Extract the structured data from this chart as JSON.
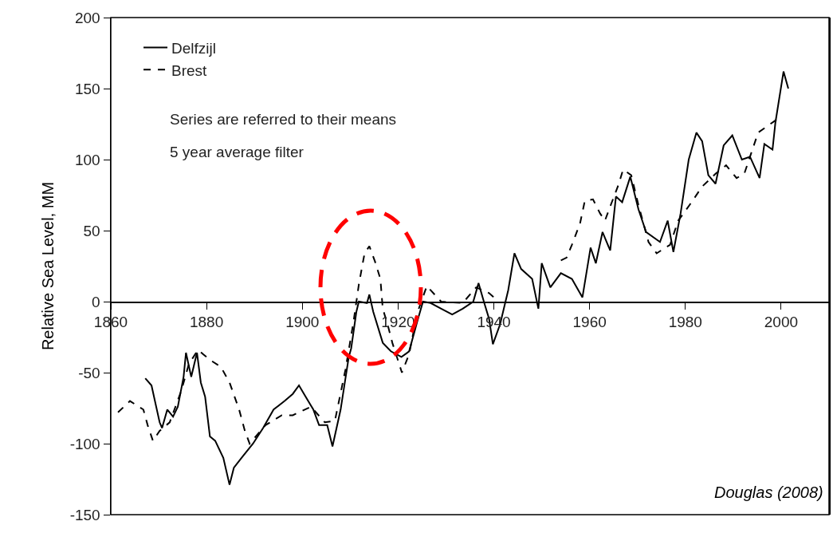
{
  "chart_data": {
    "type": "line",
    "ylabel": "Relative Sea Level, MM",
    "xlim": [
      1860,
      2010
    ],
    "xticks": [
      1860,
      1880,
      1900,
      1920,
      1940,
      1960,
      1980,
      2000
    ],
    "ylim": [
      -150,
      200
    ],
    "yticks": [
      -150,
      -100,
      -50,
      0,
      50,
      100,
      150,
      200
    ],
    "grid": false,
    "legend": "top left",
    "marker": "none",
    "annotations": [
      "Series are referred to their means",
      "5 year average filter",
      "Douglas (2008)"
    ],
    "series": [
      {
        "name": "Delfzijl",
        "color": "#000000",
        "line_style": "solid",
        "x": [
          1867.2,
          1868.5,
          1870.2,
          1870.7,
          1871.8,
          1873,
          1874,
          1875.2,
          1875.7,
          1876.8,
          1878,
          1878.8,
          1879.7,
          1880.7,
          1881.8,
          1883.5,
          1884.8,
          1885.7,
          1887.3,
          1889.7,
          1891.8,
          1894,
          1896.3,
          1898,
          1899.3,
          1900.7,
          1902.3,
          1903.5,
          1905.2,
          1906.3,
          1908,
          1909.7,
          1910.2,
          1911.3,
          1911.8,
          1913.5,
          1914,
          1914.8,
          1916.8,
          1918.5,
          1920.7,
          1922.3,
          1924,
          1925.2,
          1926.8,
          1929,
          1931.3,
          1933.5,
          1935.7,
          1936.8,
          1938,
          1939,
          1939.8,
          1941.3,
          1943,
          1944.3,
          1945.7,
          1948,
          1949.3,
          1950,
          1951.8,
          1954,
          1956.3,
          1958.5,
          1960.2,
          1961.3,
          1962.7,
          1964.3,
          1965.5,
          1966.8,
          1968.5,
          1970.2,
          1971.8,
          1974.7,
          1976.3,
          1977.5,
          1979,
          1980.7,
          1982.3,
          1983.5,
          1984.8,
          1986.3,
          1988,
          1989.8,
          1991.8,
          1993.5,
          1995.5,
          1996.5,
          1998.2,
          1998.8,
          2000.5,
          2001.5
        ],
        "values": [
          -54,
          -59,
          -85,
          -89,
          -76,
          -81,
          -74,
          -53,
          -36,
          -53,
          -36,
          -57,
          -67,
          -95,
          -98,
          -110,
          -129,
          -117,
          -110,
          -100,
          -89,
          -76,
          -70,
          -65,
          -59,
          -67,
          -76,
          -87,
          -87,
          -102,
          -76,
          -39,
          -33,
          -7,
          0,
          -1,
          5,
          -7,
          -29,
          -35,
          -39,
          -35,
          -14,
          0,
          -1,
          -5,
          -9,
          -5,
          0,
          13,
          -1,
          -12,
          -30,
          -16,
          8,
          34,
          23,
          16,
          -5,
          27,
          10,
          20,
          16,
          3,
          38,
          27,
          49,
          36,
          74,
          70,
          88,
          65,
          49,
          42,
          57,
          35,
          62,
          100,
          119,
          113,
          89,
          83,
          110,
          117,
          100,
          102,
          87,
          111,
          107,
          126,
          162,
          150
        ]
      },
      {
        "name": "Brest",
        "color": "#000000",
        "line_style": "dashed",
        "x": [
          1861.5,
          1864,
          1866.8,
          1867.7,
          1868.8,
          1870.2,
          1872.3,
          1874.7,
          1876.3,
          1878.2,
          1880.7,
          1883,
          1884.8,
          1886.8,
          1888,
          1889,
          1892.3,
          1895.7,
          1898,
          1901.8,
          1904.7,
          1906.8,
          1909,
          1910.7,
          1911.8,
          1913,
          1914,
          1915.2,
          1916.3,
          1916.8,
          1917.8,
          1918.8,
          1920.8,
          1922.3,
          1924,
          1926,
          1929,
          1933.5,
          1936.3,
          1939,
          1940,
          1946,
          1954,
          1955.2,
          1956.3,
          1958,
          1959,
          1960.7,
          1962.2,
          1963.2,
          1964.3,
          1966,
          1967,
          1968.7,
          1970.2,
          1972.3,
          1974,
          1976.8,
          1978.5,
          1981.3,
          1983.5,
          1986.3,
          1988.5,
          1990.7,
          1992.3,
          1994,
          1995.2,
          1997.3,
          1999
        ],
        "values": [
          -78,
          -70,
          -76,
          -87,
          -98,
          -91,
          -85,
          -63,
          -44,
          -34,
          -41,
          -46,
          -57,
          -76,
          -91,
          -100,
          -87,
          -80,
          -80,
          -74,
          -85,
          -84,
          -48,
          -14,
          12,
          34,
          39,
          28,
          16,
          -5,
          -16,
          -29,
          -50,
          -37,
          -8,
          11,
          0,
          -1,
          10,
          6,
          3,
          null,
          29,
          31,
          40,
          55,
          71,
          72,
          62,
          57,
          67,
          82,
          93,
          89,
          68,
          42,
          34,
          40,
          57,
          70,
          81,
          90,
          96,
          87,
          90,
          107,
          119,
          124,
          128
        ]
      }
    ]
  }
}
